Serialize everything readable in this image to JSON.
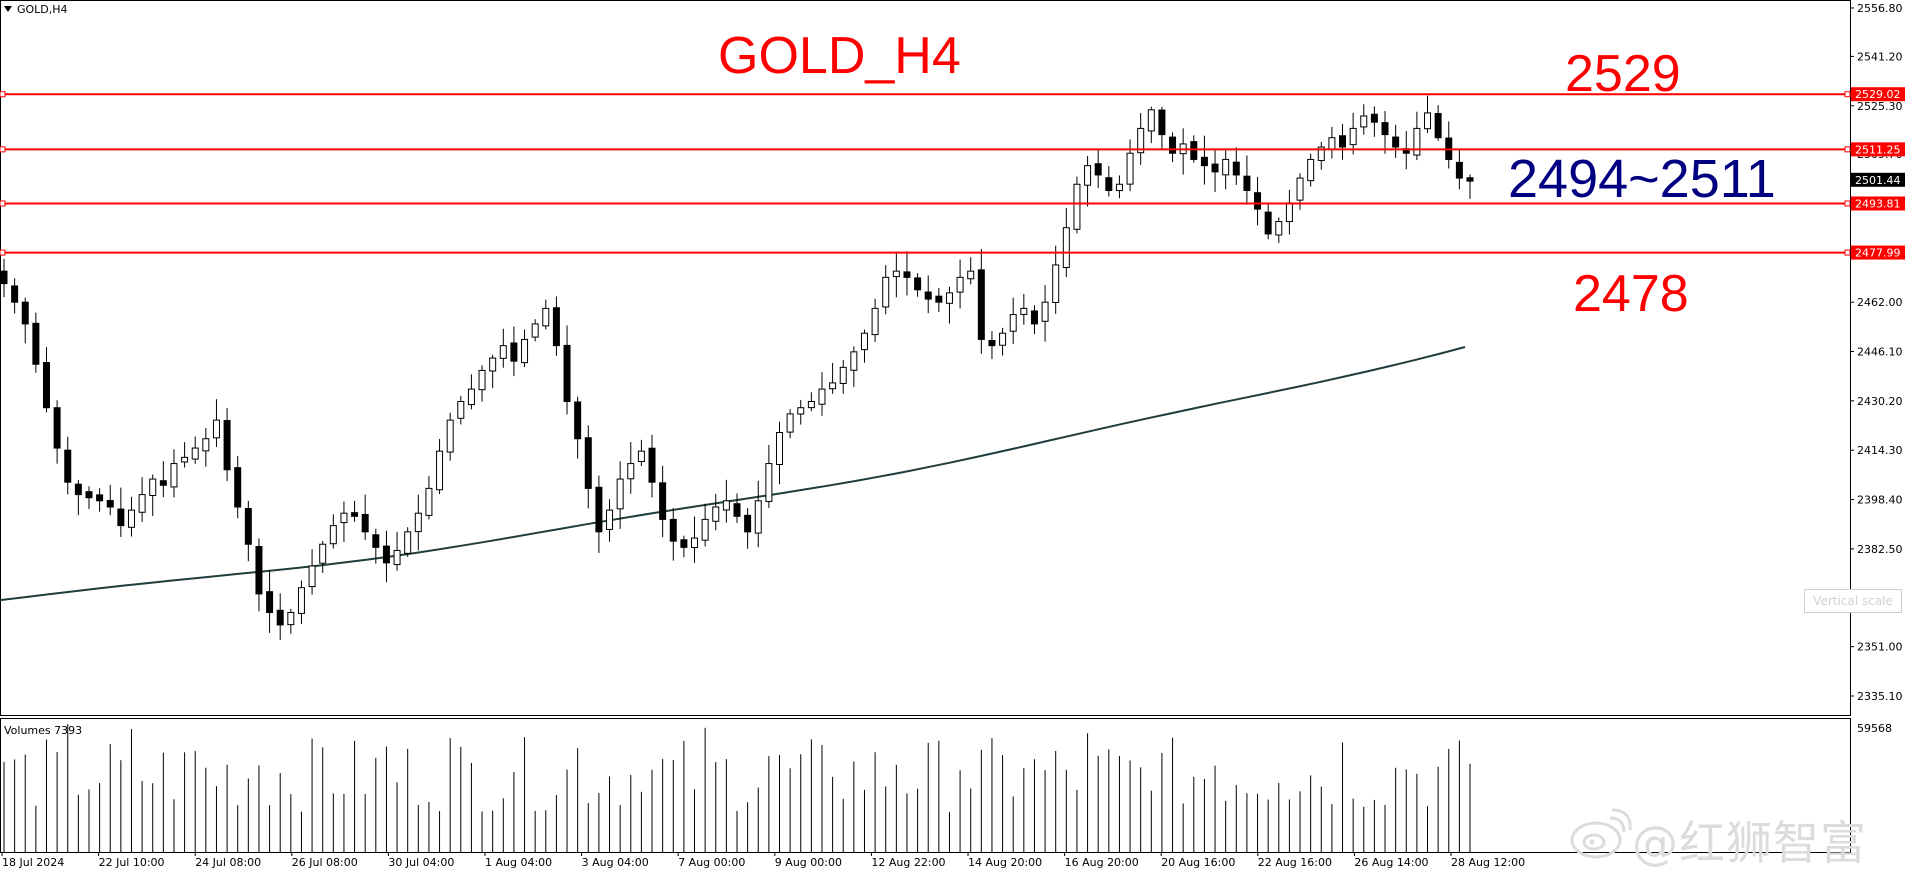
{
  "window": {
    "symbol_label": "GOLD,H4"
  },
  "annotations": {
    "title": "GOLD_H4",
    "level_top": "2529",
    "range": "2494~2511",
    "level_bottom": "2478",
    "title_color": "#ff0000",
    "range_color": "#000080"
  },
  "price_axis": {
    "ticks": [
      "2556.80",
      "2541.20",
      "2525.30",
      "2509.70",
      "2493.81",
      "2478.00",
      "2462.00",
      "2446.10",
      "2430.20",
      "2414.30",
      "2398.40",
      "2382.50",
      "2366.90",
      "2351.00",
      "2335.10"
    ],
    "badges": [
      {
        "value": "2529.02",
        "type": "line",
        "color": "#ff0000"
      },
      {
        "value": "2511.25",
        "type": "line",
        "color": "#ff0000"
      },
      {
        "value": "2501.44",
        "type": "current",
        "color": "#000000"
      },
      {
        "value": "2493.81",
        "type": "line",
        "color": "#ff0000"
      },
      {
        "value": "2477.99",
        "type": "line",
        "color": "#ff0000"
      }
    ]
  },
  "horizontal_lines": [
    2529.02,
    2511.25,
    2493.81,
    2477.99
  ],
  "time_axis": {
    "labels": [
      "18 Jul 2024",
      "22 Jul 10:00",
      "24 Jul 08:00",
      "26 Jul 08:00",
      "30 Jul 04:00",
      "1 Aug 04:00",
      "3 Aug 04:00",
      "7 Aug 00:00",
      "9 Aug 00:00",
      "12 Aug 22:00",
      "14 Aug 20:00",
      "16 Aug 20:00",
      "20 Aug 16:00",
      "22 Aug 16:00",
      "26 Aug 14:00",
      "28 Aug 12:00"
    ]
  },
  "volume": {
    "label": "Volumes 7393",
    "axis_max": "59568"
  },
  "vertical_scale_box": "Vertical scale",
  "watermark": {
    "text": "@红狮智富",
    "logo": "weibo-logo"
  },
  "chart_data": {
    "type": "candlestick",
    "y_range": [
      2330,
      2560
    ],
    "moving_average": {
      "start": 2366,
      "end": 2448
    },
    "candles_close_path": [
      2468,
      2462,
      2455,
      2442,
      2428,
      2415,
      2404,
      2400,
      2399,
      2398,
      2396,
      2390,
      2395,
      2400,
      2405,
      2403,
      2410,
      2412,
      2415,
      2418,
      2424,
      2408,
      2396,
      2384,
      2368,
      2362,
      2358,
      2362,
      2370,
      2377,
      2384,
      2390,
      2394,
      2393,
      2388,
      2383,
      2378,
      2382,
      2388,
      2394,
      2402,
      2414,
      2424,
      2430,
      2434,
      2440,
      2444,
      2448,
      2443,
      2450,
      2455,
      2460,
      2448,
      2430,
      2418,
      2402,
      2388,
      2395,
      2405,
      2410,
      2414,
      2404,
      2392,
      2385,
      2383,
      2386,
      2392,
      2396,
      2398,
      2393,
      2388,
      2398,
      2410,
      2420,
      2426,
      2428,
      2430,
      2434,
      2436,
      2441,
      2446,
      2452,
      2460,
      2470,
      2472,
      2470,
      2466,
      2463,
      2462,
      2465,
      2470,
      2472,
      2450,
      2448,
      2452,
      2458,
      2460,
      2455,
      2462,
      2474,
      2486,
      2500,
      2506,
      2503,
      2498,
      2500,
      2510,
      2518,
      2524,
      2516,
      2510,
      2513,
      2508,
      2506,
      2504,
      2508,
      2503,
      2498,
      2492,
      2484,
      2488,
      2494,
      2502,
      2508,
      2512,
      2515,
      2512,
      2518,
      2522,
      2520,
      2516,
      2512,
      2510,
      2518,
      2523,
      2515,
      2508,
      2502,
      2501
    ]
  }
}
